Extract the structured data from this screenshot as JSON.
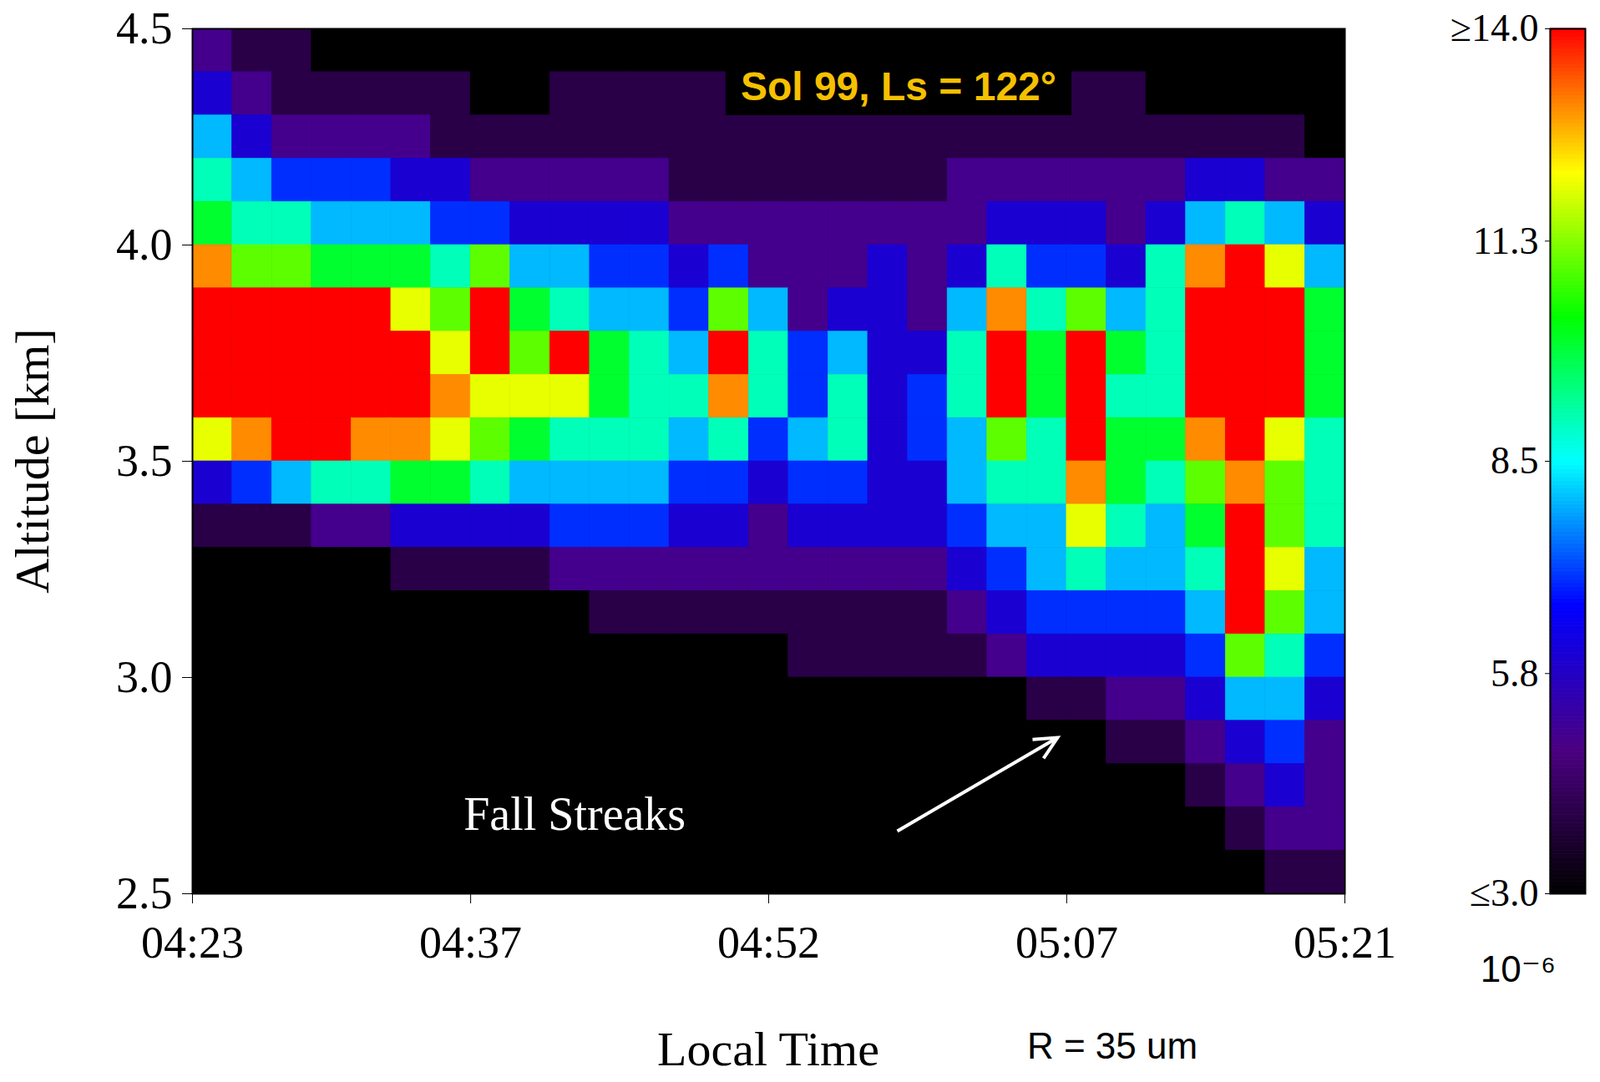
{
  "chart_data": {
    "type": "heatmap",
    "title": "Sol 99, Ls = 122°",
    "x_label": "Local Time",
    "y_label": "Altitude [km]",
    "annotations": [
      "Fall Streaks",
      "R = 35 um"
    ],
    "xlim": [
      263,
      321
    ],
    "ylim": [
      2.5,
      4.5
    ],
    "xticks": [
      {
        "value": 263,
        "label": "04:23"
      },
      {
        "value": 277,
        "label": "04:37"
      },
      {
        "value": 292,
        "label": "04:52"
      },
      {
        "value": 307,
        "label": "05:07"
      },
      {
        "value": 321,
        "label": "05:21"
      }
    ],
    "yticks": [
      2.5,
      {
        "value": 3,
        "label": "3.0"
      },
      3.5,
      {
        "value": 4,
        "label": "4.0"
      },
      4.5
    ],
    "x": [
      264,
      266,
      268,
      270,
      272,
      274,
      276,
      278,
      280,
      282,
      284,
      286,
      288,
      290,
      292,
      294,
      296,
      298,
      300,
      302,
      304,
      306,
      308,
      310,
      312,
      314,
      316,
      318,
      320
    ],
    "y": [
      4.45,
      4.35,
      4.25,
      4.15,
      4.05,
      3.95,
      3.85,
      3.75,
      3.65,
      3.55,
      3.45,
      3.35,
      3.25,
      3.15,
      3.05,
      2.95,
      2.85,
      2.75,
      2.65,
      2.55
    ],
    "z": [
      [
        5,
        4,
        4,
        3,
        3,
        3,
        3,
        3,
        3,
        3,
        3,
        3,
        3,
        3,
        3,
        3,
        3,
        3,
        3,
        3,
        3,
        3,
        3,
        3,
        3,
        3,
        3,
        3,
        3
      ],
      [
        6,
        5,
        4,
        4,
        4,
        4,
        4,
        3,
        3,
        4,
        4,
        4,
        4,
        4,
        4,
        4,
        4,
        4,
        4,
        4,
        4,
        4,
        4,
        4,
        3,
        3,
        3,
        3,
        3
      ],
      [
        8,
        6,
        5,
        5,
        5,
        5,
        4,
        4,
        4,
        4,
        4,
        4,
        4,
        4,
        4,
        4,
        4,
        4,
        4,
        4,
        4,
        4,
        4,
        4,
        4,
        4,
        4,
        4,
        3
      ],
      [
        9,
        8,
        7,
        7,
        7,
        6,
        6,
        5,
        5,
        5,
        5,
        5,
        4,
        4,
        4,
        4,
        4,
        4,
        4,
        5,
        5,
        5,
        5,
        5,
        5,
        6,
        6,
        5,
        5
      ],
      [
        10,
        9,
        9,
        8,
        8,
        8,
        7,
        7,
        6,
        6,
        6,
        6,
        5,
        5,
        5,
        5,
        5,
        5,
        5,
        5,
        6,
        6,
        6,
        5,
        6,
        8,
        9,
        8,
        6
      ],
      [
        13,
        11,
        11,
        10,
        10,
        10,
        9,
        11,
        8,
        8,
        7,
        7,
        6,
        7,
        5,
        5,
        5,
        6,
        5,
        6,
        9,
        7,
        7,
        6,
        9,
        13,
        14,
        12,
        8
      ],
      [
        15,
        15,
        14,
        15,
        14,
        12,
        11,
        14,
        10,
        9,
        8,
        8,
        7,
        11,
        8,
        5,
        6,
        6,
        5,
        8,
        13,
        9,
        11,
        8,
        9,
        15,
        15,
        14,
        10
      ],
      [
        15,
        15,
        15,
        15,
        15,
        14,
        12,
        14,
        11,
        14,
        10,
        9,
        8,
        14,
        9,
        7,
        8,
        6,
        6,
        9,
        15,
        10,
        14,
        10,
        9,
        15,
        15,
        15,
        10
      ],
      [
        15,
        15,
        15,
        15,
        15,
        14,
        13,
        12,
        12,
        12,
        10,
        9,
        9,
        13,
        9,
        7,
        9,
        6,
        7,
        9,
        14,
        10,
        15,
        9,
        9,
        15,
        15,
        14,
        10
      ],
      [
        12,
        13,
        14,
        14,
        13,
        13,
        12,
        11,
        10,
        9,
        9,
        9,
        8,
        9,
        7,
        8,
        9,
        6,
        7,
        8,
        11,
        9,
        14,
        10,
        10,
        13,
        14,
        12,
        9
      ],
      [
        6,
        7,
        8,
        9,
        9,
        10,
        10,
        9,
        8,
        8,
        8,
        8,
        7,
        7,
        6,
        7,
        7,
        6,
        6,
        8,
        9,
        9,
        13,
        10,
        9,
        11,
        13,
        11,
        9
      ],
      [
        4,
        4,
        4,
        5,
        5,
        6,
        6,
        6,
        6,
        7,
        7,
        7,
        6,
        6,
        5,
        6,
        6,
        6,
        6,
        7,
        8,
        8,
        12,
        9,
        8,
        10,
        14,
        11,
        9
      ],
      [
        3,
        3,
        3,
        3,
        3,
        4,
        4,
        4,
        4,
        5,
        5,
        5,
        5,
        5,
        5,
        5,
        5,
        5,
        5,
        6,
        7,
        8,
        9,
        8,
        8,
        9,
        14,
        12,
        8
      ],
      [
        3,
        3,
        3,
        3,
        3,
        3,
        3,
        3,
        3,
        3,
        4,
        4,
        4,
        4,
        4,
        4,
        4,
        4,
        4,
        5,
        6,
        7,
        7,
        7,
        7,
        8,
        14,
        11,
        8
      ],
      [
        3,
        3,
        3,
        3,
        3,
        3,
        3,
        3,
        3,
        3,
        3,
        3,
        3,
        3,
        3,
        4,
        4,
        4,
        4,
        4,
        5,
        6,
        6,
        6,
        6,
        7,
        11,
        9,
        7
      ],
      [
        2,
        2,
        2,
        2,
        2,
        2,
        2,
        2,
        2,
        2,
        2,
        2,
        2,
        2,
        2,
        2,
        2,
        2,
        2,
        3,
        3,
        4,
        4,
        5,
        5,
        6,
        8,
        8,
        6
      ],
      [
        2,
        2,
        2,
        2,
        2,
        2,
        2,
        2,
        2,
        2,
        2,
        2,
        2,
        2,
        2,
        2,
        2,
        2,
        2,
        2,
        2,
        3,
        3,
        4,
        4,
        5,
        6,
        7,
        5
      ],
      [
        2,
        2,
        2,
        2,
        2,
        2,
        2,
        2,
        2,
        2,
        2,
        2,
        2,
        2,
        2,
        2,
        2,
        2,
        2,
        2,
        2,
        2,
        2,
        3,
        3,
        4,
        5,
        6,
        5
      ],
      [
        2,
        2,
        2,
        2,
        2,
        2,
        2,
        2,
        2,
        2,
        2,
        2,
        2,
        2,
        2,
        2,
        2,
        2,
        2,
        2,
        2,
        2,
        2,
        2,
        3,
        3,
        4,
        5,
        5
      ],
      [
        2,
        2,
        2,
        2,
        2,
        2,
        2,
        2,
        2,
        2,
        2,
        2,
        2,
        2,
        2,
        2,
        2,
        2,
        2,
        2,
        2,
        2,
        2,
        2,
        2,
        3,
        3,
        4,
        4
      ]
    ],
    "colorbar": {
      "range": [
        3,
        14
      ],
      "ticks": [
        {
          "value": 3,
          "label": "≤3.0"
        },
        5.8,
        8.5,
        11.3,
        {
          "value": 14,
          "label": "≥14.0"
        }
      ],
      "label": "10⁻⁶",
      "colors": [
        "#000000",
        "#4b0082",
        "#0000ff",
        "#00ffff",
        "#00ff00",
        "#ffff00",
        "#ff0000"
      ]
    }
  }
}
